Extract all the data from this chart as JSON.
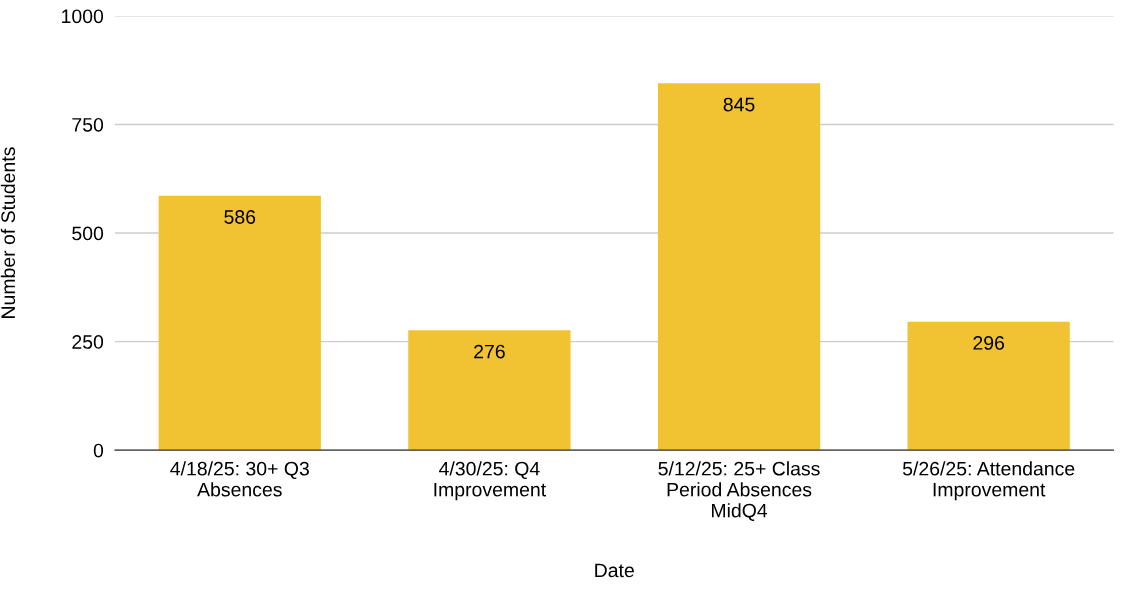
{
  "chart_data": {
    "type": "bar",
    "xlabel": "Date",
    "ylabel": "Number of Students",
    "categories": [
      "4/18/25: 30+ Q3\nAbsences",
      "4/30/25: Q4\nImprovement",
      "5/12/25: 25+ Class\nPeriod Absences\nMidQ4",
      "5/26/25: Attendance\nImprovement"
    ],
    "values": [
      586,
      276,
      845,
      296
    ],
    "color": "#f1c232",
    "ylim": [
      0,
      1000
    ],
    "yticks": [
      0,
      250,
      500,
      750,
      1000
    ],
    "grid": "y",
    "data_labels": true,
    "legend": false
  }
}
